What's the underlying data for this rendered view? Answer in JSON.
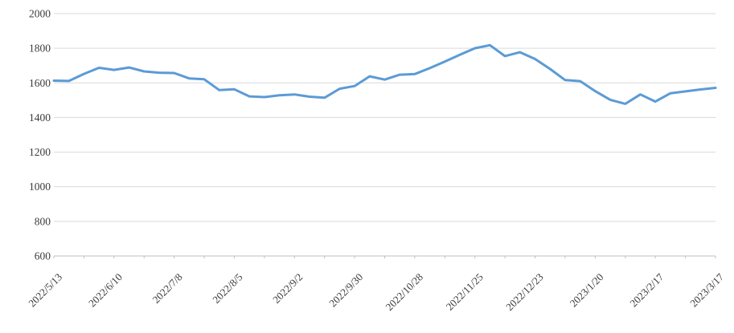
{
  "chart_data": {
    "type": "line",
    "title": "",
    "subtitle": "",
    "legend": "none",
    "background": "#FFFFFF",
    "series": [
      {
        "name": "weekly-price-series",
        "color": "#5B9BD5",
        "stroke_width": 3,
        "values": [
          1613,
          1611,
          1652,
          1687,
          1675,
          1689,
          1666,
          1659,
          1657,
          1626,
          1621,
          1558,
          1563,
          1522,
          1518,
          1528,
          1533,
          1520,
          1514,
          1566,
          1582,
          1638,
          1619,
          1647,
          1651,
          1685,
          1723,
          1762,
          1800,
          1818,
          1755,
          1777,
          1738,
          1680,
          1616,
          1610,
          1552,
          1502,
          1479,
          1533,
          1492,
          1540,
          1551,
          1562,
          1571
        ]
      }
    ],
    "x_tick_labels": [
      "2022/5/13",
      "2022/6/10",
      "2022/7/8",
      "2022/8/5",
      "2022/9/2",
      "2022/9/30",
      "2022/10/28",
      "2022/11/25",
      "2022/12/23",
      "2023/1/20",
      "2023/2/17",
      "2023/3/17"
    ],
    "x_label_every_n_points": 4,
    "x_minor_tick_every_n_points": 2,
    "x_label_rotation_deg": 45,
    "ylim": [
      600,
      2000
    ],
    "ytick_step": 200,
    "ytick_labels": [
      "600",
      "800",
      "1000",
      "1200",
      "1400",
      "1600",
      "1800",
      "2000"
    ],
    "grid": {
      "horizontal": true,
      "vertical": false,
      "color": "#D9D9D9"
    },
    "axis": {
      "line_color": "#BFBFBF",
      "tick_color": "#BFBFBF",
      "tick_length": 3,
      "label_color": "#3B3B3B"
    }
  }
}
